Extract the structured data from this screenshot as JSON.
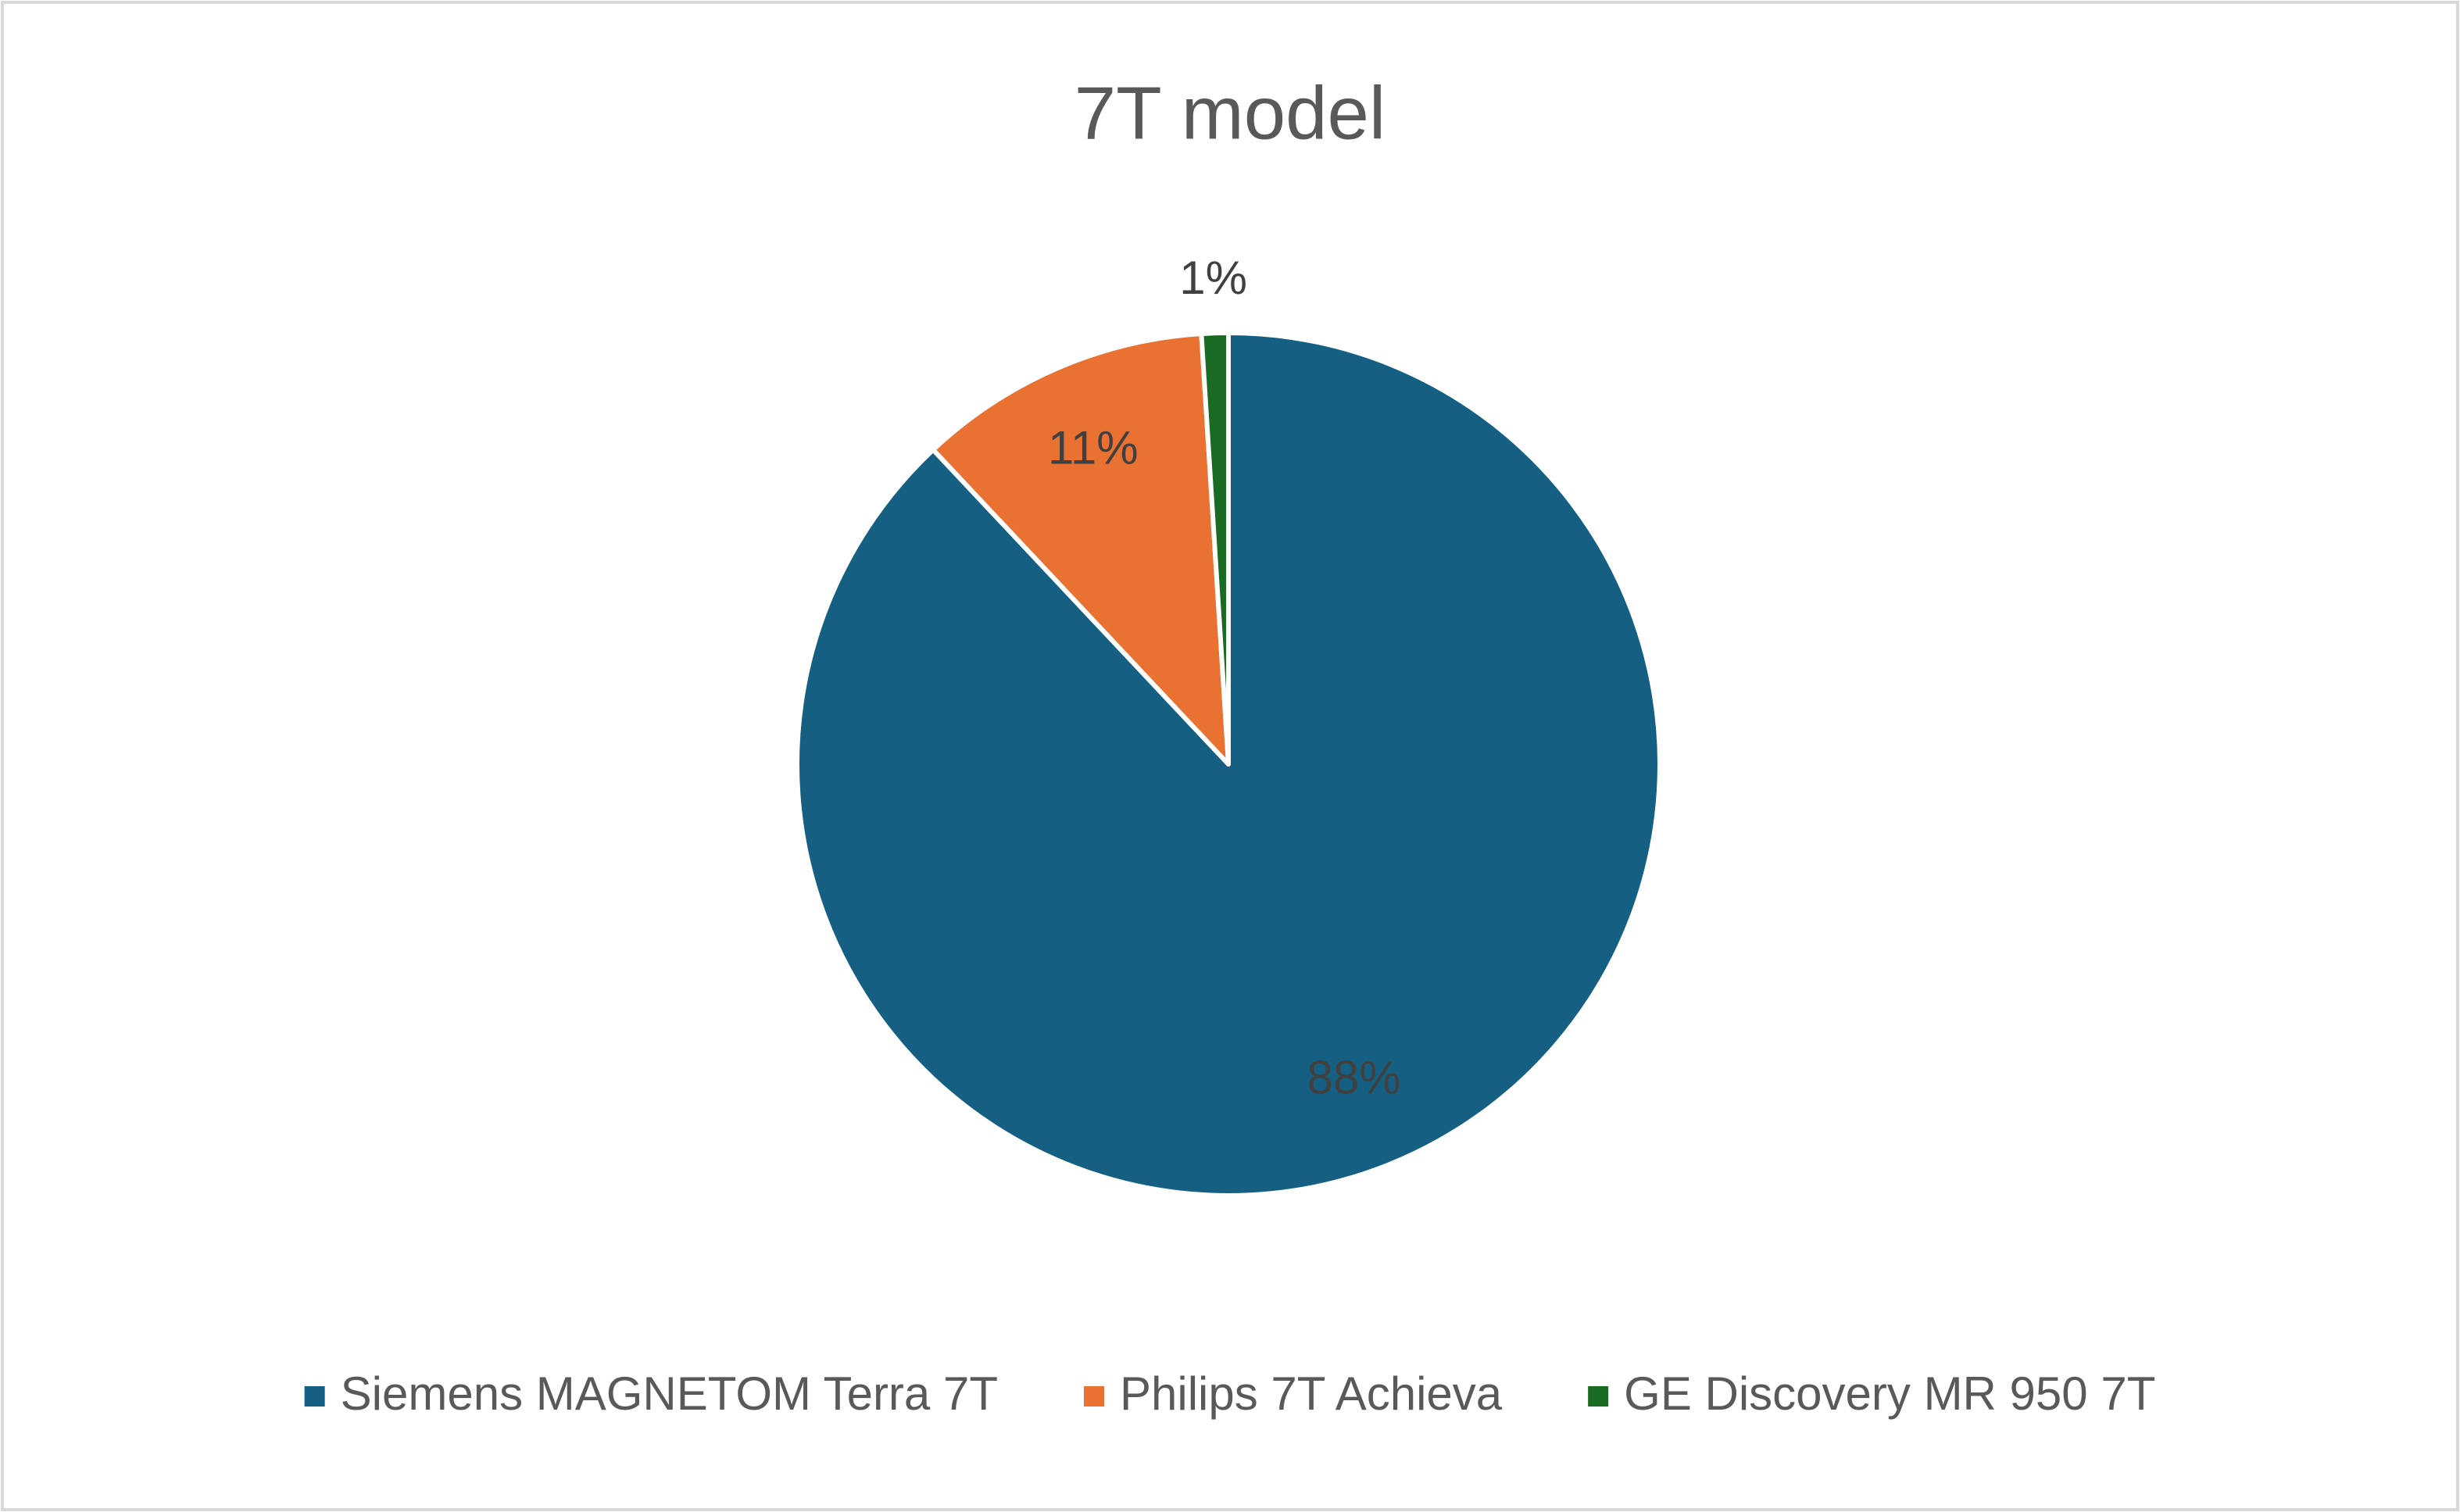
{
  "chart_data": {
    "type": "pie",
    "title": "7T model",
    "categories": [
      "Siemens MAGNETOM Terra 7T",
      "Philips 7T Achieva",
      "GE Discovery MR 950 7T"
    ],
    "values": [
      88,
      11,
      1
    ],
    "value_labels": [
      "88%",
      "11%",
      "1%"
    ],
    "colors": [
      "#156082",
      "#e97132",
      "#196b24"
    ],
    "legend": "bottom"
  }
}
